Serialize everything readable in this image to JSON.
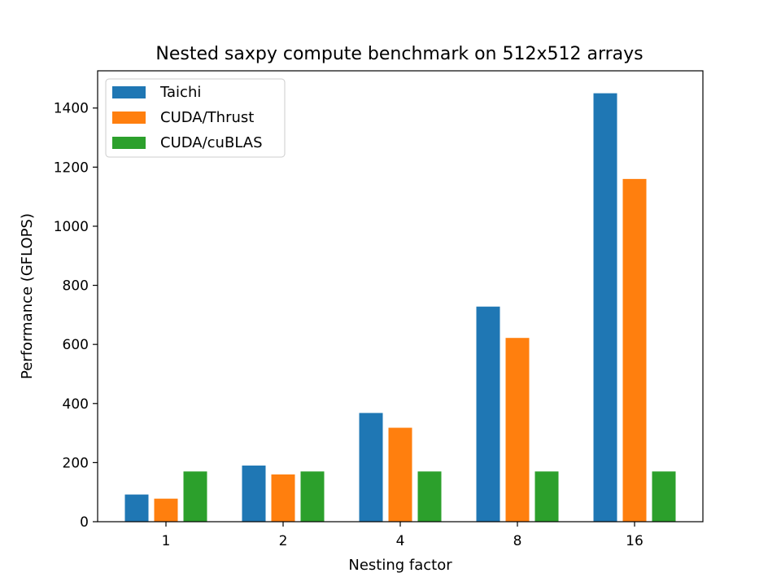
{
  "chart_data": {
    "type": "bar",
    "title": "Nested saxpy compute benchmark on 512x512 arrays",
    "xlabel": "Nesting factor",
    "ylabel": "Performance (GFLOPS)",
    "categories": [
      "1",
      "2",
      "4",
      "8",
      "16"
    ],
    "series": [
      {
        "name": "Taichi",
        "color": "#1f77b4",
        "values": [
          92,
          190,
          368,
          728,
          1450
        ]
      },
      {
        "name": "CUDA/Thrust",
        "color": "#ff7f0e",
        "values": [
          78,
          160,
          318,
          622,
          1160
        ]
      },
      {
        "name": "CUDA/cuBLAS",
        "color": "#2ca02c",
        "values": [
          170,
          170,
          170,
          170,
          170
        ]
      }
    ],
    "ylim": [
      0,
      1526
    ],
    "yticks": [
      0,
      200,
      400,
      600,
      800,
      1000,
      1200,
      1400
    ],
    "grid": false,
    "legend_position": "top-left"
  }
}
